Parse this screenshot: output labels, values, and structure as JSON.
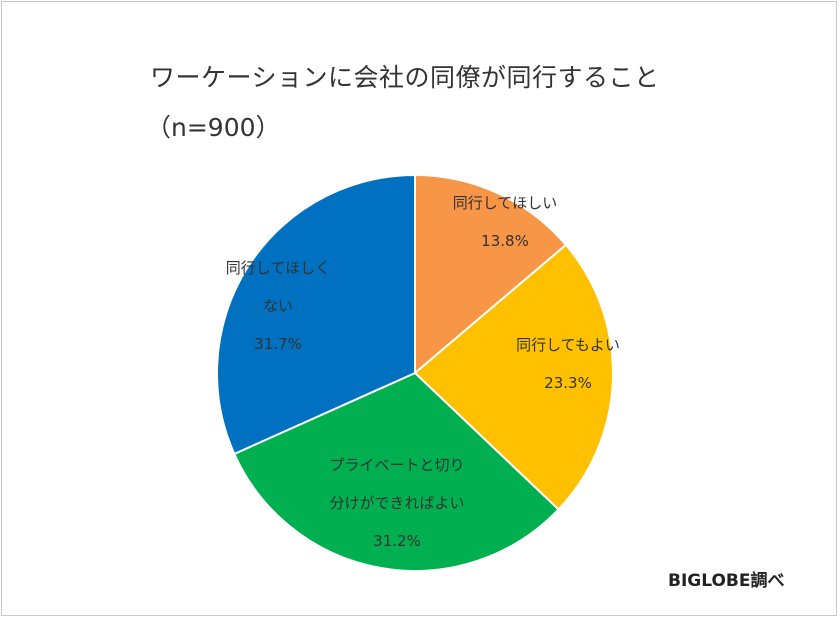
{
  "chart_data": {
    "type": "pie",
    "title": "ワーケーションに会社の同僚が同行すること",
    "subtitle": "（n=900）",
    "slices": [
      {
        "label_lines": [
          "同行してほしい"
        ],
        "value": 13.8,
        "value_label": "13.8%",
        "color": "#F79646"
      },
      {
        "label_lines": [
          "同行してもよい"
        ],
        "value": 23.3,
        "value_label": "23.3%",
        "color": "#FFC000"
      },
      {
        "label_lines": [
          "プライベートと切り",
          "分けができればよい"
        ],
        "value": 31.2,
        "value_label": "31.2%",
        "color": "#00B050"
      },
      {
        "label_lines": [
          "同行してほしく",
          "ない"
        ],
        "value": 31.7,
        "value_label": "31.7%",
        "color": "#0070C0"
      }
    ],
    "start_angle": "12 o'clock",
    "direction": "clockwise",
    "legend": "none"
  },
  "credit": "BIGLOBE調べ"
}
